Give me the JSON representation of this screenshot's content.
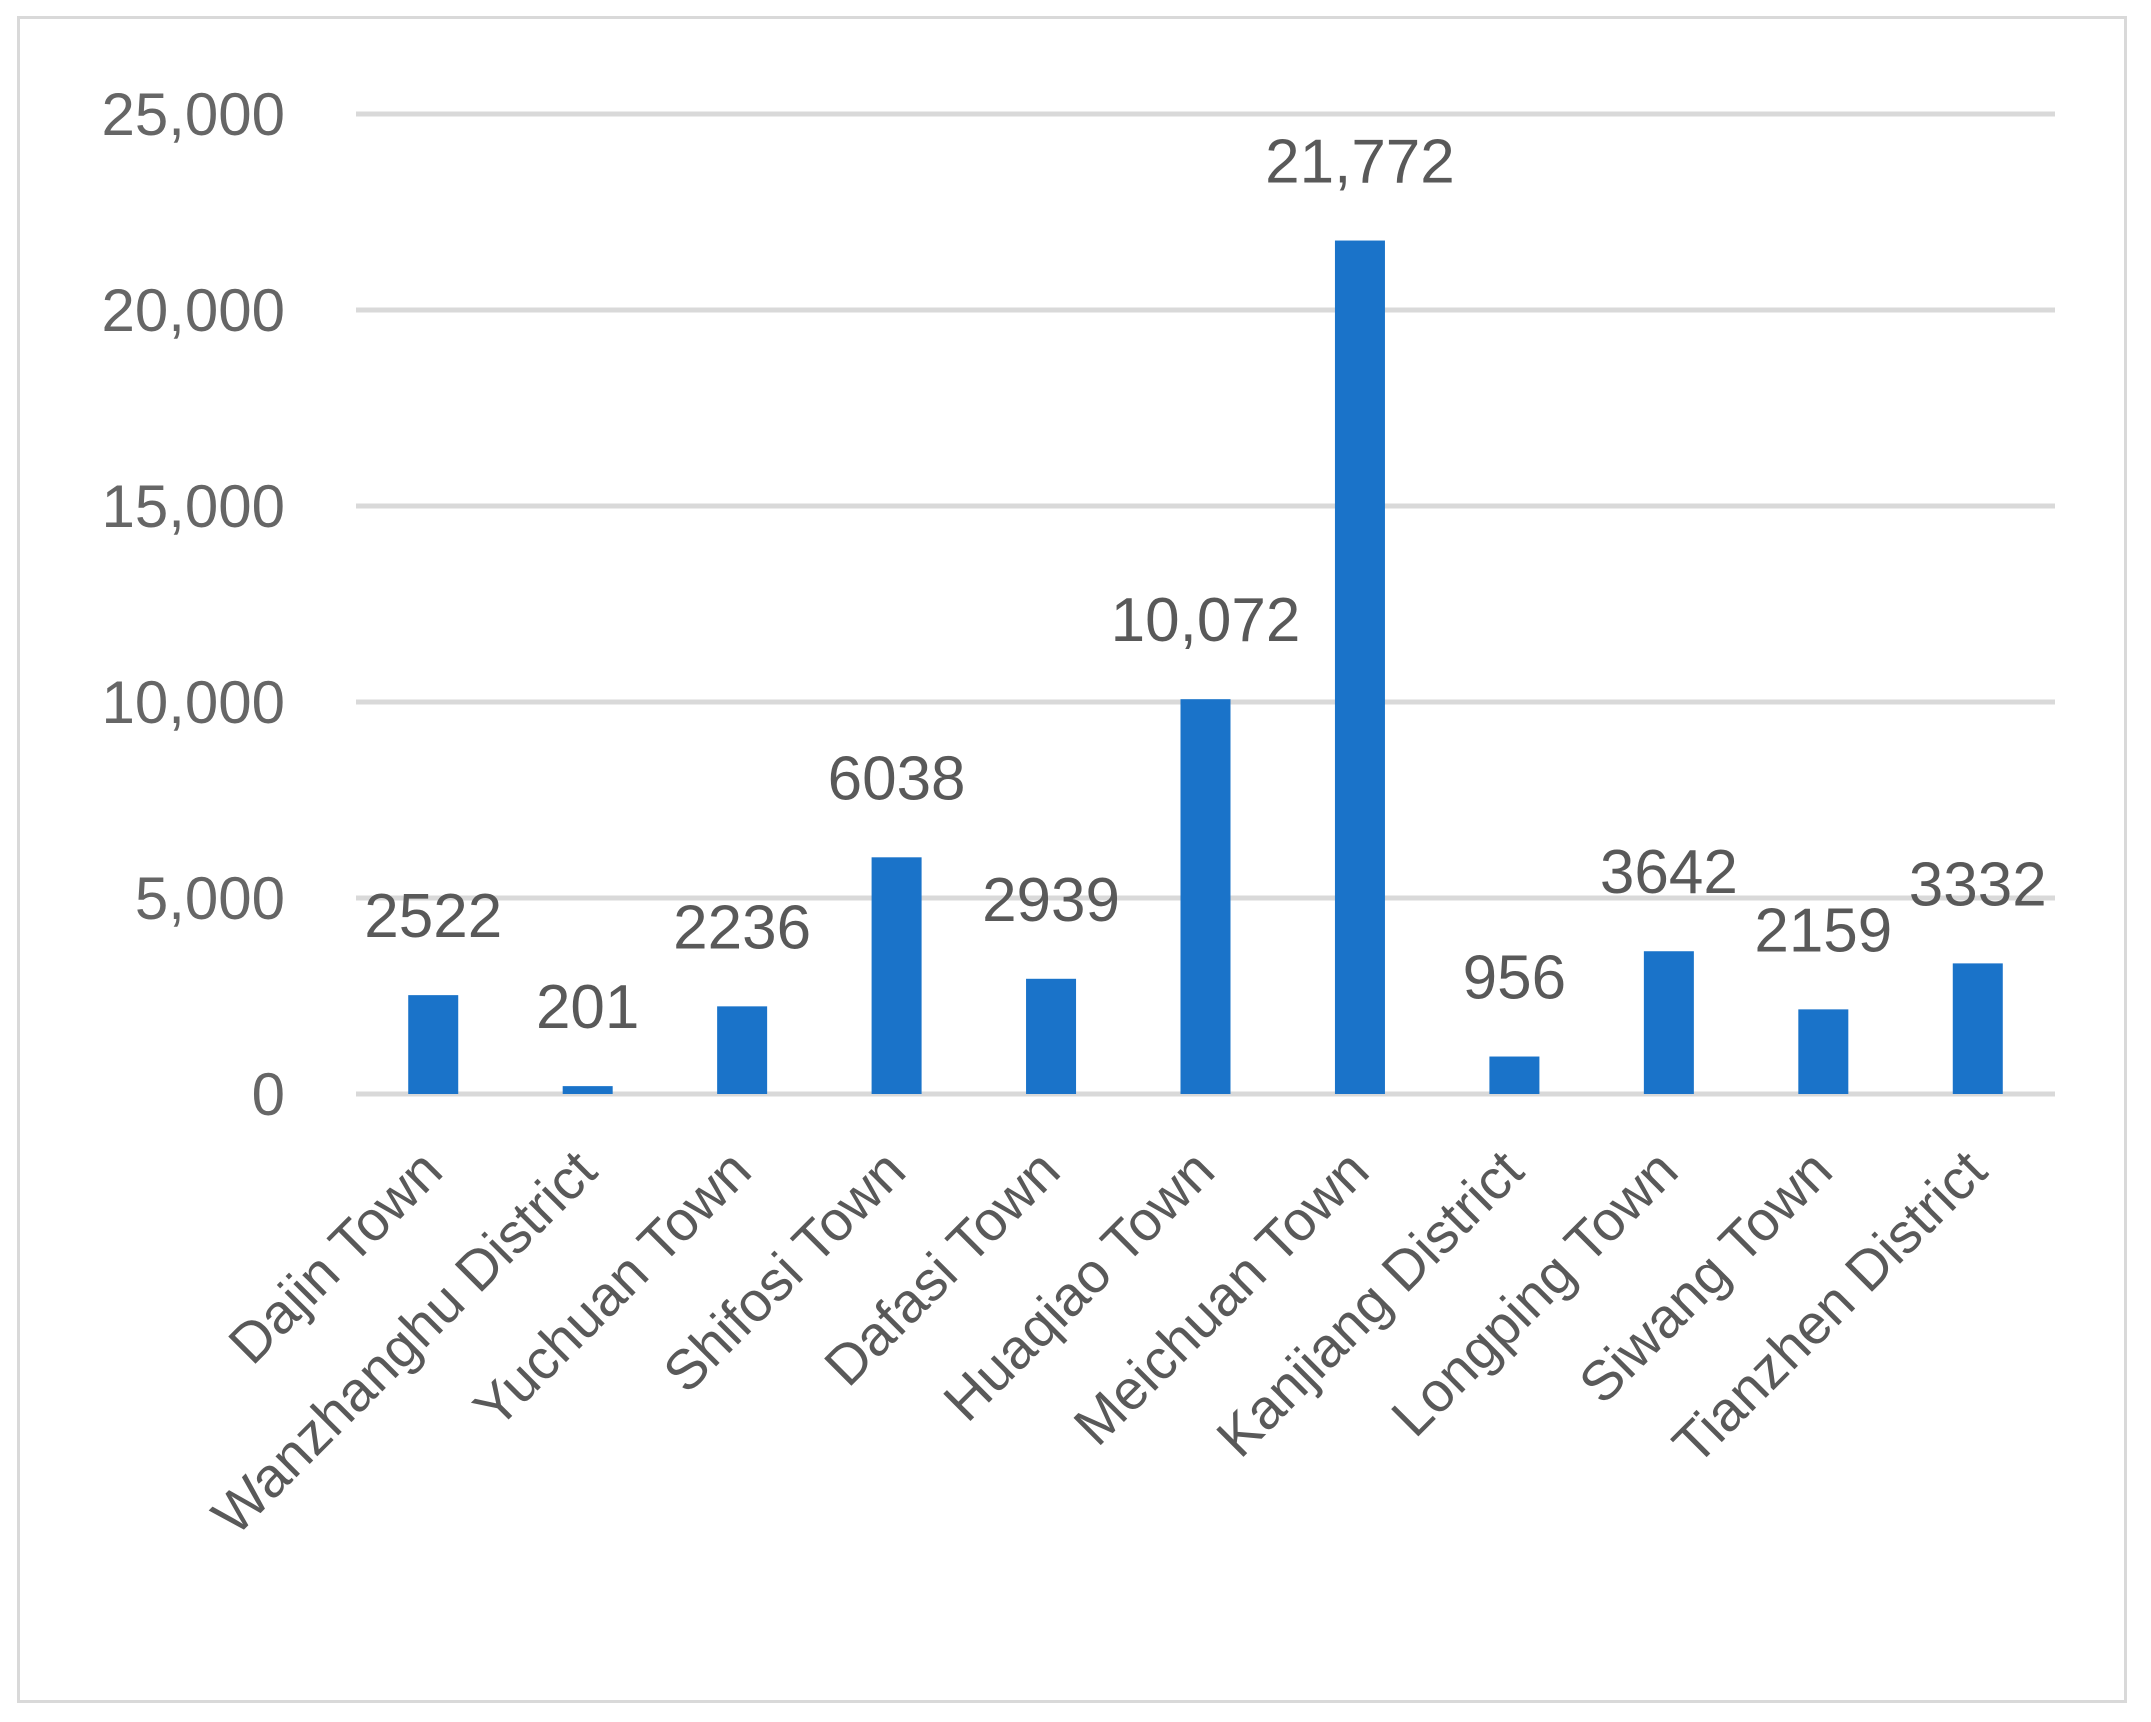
{
  "chart_data": {
    "type": "bar",
    "categories": [
      "Dajin Town",
      "Wanzhanghu District",
      "Yuchuan Town",
      "Shifosi Town",
      "Dafasi Town",
      "Huaqiao Town",
      "Meichuan Town",
      "Kanjiang District",
      "Longping Town",
      "Siwang Town",
      "Tianzhen District"
    ],
    "values": [
      2522,
      201,
      2236,
      6038,
      2939,
      10072,
      21772,
      956,
      3642,
      2159,
      3332
    ],
    "data_labels": [
      "2522",
      "201",
      "2236",
      "6038",
      "2939",
      "10,072",
      "21,772",
      "956",
      "3642",
      "2159",
      "3332"
    ],
    "title": "",
    "xlabel": "",
    "ylabel": "",
    "ylim": [
      0,
      25000
    ],
    "yticks": [
      0,
      5000,
      10000,
      15000,
      20000,
      25000
    ],
    "ytick_labels": [
      "0",
      "5,000",
      "10,000",
      "15,000",
      "20,000",
      "25,000"
    ],
    "grid": true,
    "legend": "none",
    "colors": {
      "bar": "#1a73c9",
      "grid": "#d9d9d9",
      "text": "#595959"
    }
  }
}
